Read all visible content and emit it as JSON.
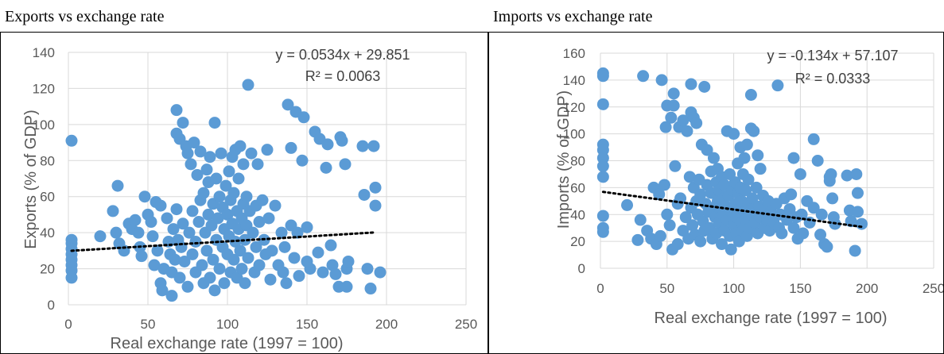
{
  "captions": {
    "left": "Exports vs exchange rate",
    "right": "Imports vs exchange rate"
  },
  "colors": {
    "point": "#5b9bd5",
    "grid": "#d9d9d9",
    "trend": "#000000",
    "text": "#595959"
  },
  "chart_data": [
    {
      "type": "scatter",
      "title": "",
      "xlabel": "Real exchange rate (1997 = 100)",
      "ylabel": "Exports (% of GDP)",
      "xlim": [
        0,
        250
      ],
      "ylim": [
        0,
        140
      ],
      "xticks": [
        0,
        50,
        100,
        150,
        200,
        250
      ],
      "yticks": [
        0,
        20,
        40,
        60,
        80,
        100,
        120,
        140
      ],
      "grid": true,
      "trendline": {
        "slope": 0.0534,
        "intercept": 29.851,
        "x_range": [
          2,
          193
        ],
        "style": "dotted"
      },
      "equation": "y = 0.0534x + 29.851",
      "r_squared": "R² = 0.0063",
      "points": [
        [
          2,
          91
        ],
        [
          2,
          36
        ],
        [
          2,
          34
        ],
        [
          2,
          31
        ],
        [
          2,
          28
        ],
        [
          2,
          25
        ],
        [
          2,
          22
        ],
        [
          2,
          19
        ],
        [
          2,
          15
        ],
        [
          20,
          38
        ],
        [
          28,
          52
        ],
        [
          30,
          40
        ],
        [
          31,
          66
        ],
        [
          32,
          34
        ],
        [
          35,
          30
        ],
        [
          38,
          45
        ],
        [
          40,
          42
        ],
        [
          42,
          47
        ],
        [
          44,
          40
        ],
        [
          45,
          32
        ],
        [
          46,
          27
        ],
        [
          48,
          60
        ],
        [
          50,
          50
        ],
        [
          52,
          46
        ],
        [
          53,
          38
        ],
        [
          54,
          22
        ],
        [
          55,
          57
        ],
        [
          56,
          30
        ],
        [
          58,
          55
        ],
        [
          58,
          12
        ],
        [
          59,
          8
        ],
        [
          60,
          20
        ],
        [
          62,
          48
        ],
        [
          63,
          35
        ],
        [
          64,
          28
        ],
        [
          65,
          5
        ],
        [
          65,
          18
        ],
        [
          66,
          42
        ],
        [
          67,
          25
        ],
        [
          68,
          95
        ],
        [
          68,
          108
        ],
        [
          68,
          53
        ],
        [
          69,
          36
        ],
        [
          70,
          15
        ],
        [
          70,
          92
        ],
        [
          71,
          32
        ],
        [
          72,
          101
        ],
        [
          72,
          45
        ],
        [
          73,
          24
        ],
        [
          74,
          88
        ],
        [
          75,
          84
        ],
        [
          75,
          10
        ],
        [
          76,
          40
        ],
        [
          77,
          78
        ],
        [
          78,
          28
        ],
        [
          78,
          52
        ],
        [
          79,
          90
        ],
        [
          80,
          18
        ],
        [
          80,
          35
        ],
        [
          81,
          72
        ],
        [
          82,
          46
        ],
        [
          83,
          58
        ],
        [
          83,
          85
        ],
        [
          84,
          22
        ],
        [
          85,
          12
        ],
        [
          85,
          62
        ],
        [
          86,
          40
        ],
        [
          87,
          30
        ],
        [
          87,
          75
        ],
        [
          88,
          50
        ],
        [
          88,
          68
        ],
        [
          89,
          15
        ],
        [
          89,
          82
        ],
        [
          90,
          44
        ],
        [
          91,
          25
        ],
        [
          91,
          56
        ],
        [
          92,
          101
        ],
        [
          92,
          8
        ],
        [
          93,
          36
        ],
        [
          93,
          70
        ],
        [
          94,
          48
        ],
        [
          95,
          20
        ],
        [
          95,
          60
        ],
        [
          96,
          84
        ],
        [
          97,
          32
        ],
        [
          97,
          54
        ],
        [
          98,
          12
        ],
        [
          98,
          42
        ],
        [
          99,
          66
        ],
        [
          100,
          28
        ],
        [
          100,
          50
        ],
        [
          101,
          38
        ],
        [
          101,
          74
        ],
        [
          102,
          18
        ],
        [
          102,
          58
        ],
        [
          103,
          45
        ],
        [
          103,
          82
        ],
        [
          104,
          25
        ],
        [
          104,
          62
        ],
        [
          105,
          35
        ],
        [
          105,
          86
        ],
        [
          106,
          52
        ],
        [
          106,
          15
        ],
        [
          107,
          42
        ],
        [
          107,
          70
        ],
        [
          108,
          30
        ],
        [
          108,
          88
        ],
        [
          109,
          48
        ],
        [
          109,
          20
        ],
        [
          110,
          56
        ],
        [
          110,
          78
        ],
        [
          111,
          36
        ],
        [
          111,
          12
        ],
        [
          112,
          60
        ],
        [
          112,
          44
        ],
        [
          113,
          122
        ],
        [
          113,
          26
        ],
        [
          114,
          52
        ],
        [
          115,
          84
        ],
        [
          116,
          40
        ],
        [
          117,
          18
        ],
        [
          118,
          55
        ],
        [
          118,
          32
        ],
        [
          119,
          78
        ],
        [
          120,
          46
        ],
        [
          120,
          22
        ],
        [
          122,
          58
        ],
        [
          123,
          36
        ],
        [
          124,
          28
        ],
        [
          125,
          86
        ],
        [
          126,
          48
        ],
        [
          127,
          14
        ],
        [
          128,
          30
        ],
        [
          130,
          55
        ],
        [
          132,
          22
        ],
        [
          134,
          40
        ],
        [
          135,
          18
        ],
        [
          136,
          32
        ],
        [
          137,
          12
        ],
        [
          138,
          111
        ],
        [
          140,
          44
        ],
        [
          140,
          87
        ],
        [
          142,
          26
        ],
        [
          143,
          107
        ],
        [
          144,
          40
        ],
        [
          145,
          16
        ],
        [
          147,
          80
        ],
        [
          148,
          104
        ],
        [
          150,
          43
        ],
        [
          150,
          24
        ],
        [
          152,
          20
        ],
        [
          155,
          96
        ],
        [
          157,
          29
        ],
        [
          158,
          92
        ],
        [
          160,
          18
        ],
        [
          162,
          76
        ],
        [
          163,
          89
        ],
        [
          165,
          33
        ],
        [
          166,
          22
        ],
        [
          168,
          17
        ],
        [
          170,
          10
        ],
        [
          171,
          93
        ],
        [
          172,
          91
        ],
        [
          174,
          78
        ],
        [
          175,
          20
        ],
        [
          175,
          10
        ],
        [
          176,
          24
        ],
        [
          185,
          88
        ],
        [
          186,
          61
        ],
        [
          188,
          20
        ],
        [
          190,
          9
        ],
        [
          192,
          88
        ],
        [
          193,
          65
        ],
        [
          193,
          55
        ],
        [
          196,
          18
        ]
      ]
    },
    {
      "type": "scatter",
      "title": "",
      "xlabel": "Real exchange rate (1997 = 100)",
      "ylabel": "Imports (% of GDP)",
      "xlim": [
        0,
        250
      ],
      "ylim": [
        0,
        160
      ],
      "xticks": [
        0,
        50,
        100,
        150,
        200,
        250
      ],
      "yticks": [
        0,
        20,
        40,
        60,
        80,
        100,
        120,
        140,
        160
      ],
      "grid": true,
      "trendline": {
        "slope": -0.134,
        "intercept": 57.107,
        "x_range": [
          2,
          196
        ],
        "style": "dotted"
      },
      "equation": "y = -0.134x + 57.107",
      "r_squared": "R² = 0.0333",
      "points": [
        [
          2,
          145
        ],
        [
          2,
          143
        ],
        [
          2,
          122
        ],
        [
          2,
          92
        ],
        [
          2,
          88
        ],
        [
          2,
          82
        ],
        [
          2,
          76
        ],
        [
          2,
          68
        ],
        [
          2,
          39
        ],
        [
          2,
          30
        ],
        [
          2,
          27
        ],
        [
          20,
          47
        ],
        [
          28,
          21
        ],
        [
          30,
          36
        ],
        [
          32,
          143
        ],
        [
          35,
          28
        ],
        [
          38,
          22
        ],
        [
          40,
          60
        ],
        [
          42,
          18
        ],
        [
          44,
          55
        ],
        [
          45,
          24
        ],
        [
          46,
          140
        ],
        [
          48,
          62
        ],
        [
          49,
          105
        ],
        [
          50,
          121
        ],
        [
          50,
          40
        ],
        [
          52,
          32
        ],
        [
          53,
          112
        ],
        [
          54,
          14
        ],
        [
          55,
          121
        ],
        [
          55,
          130
        ],
        [
          56,
          76
        ],
        [
          58,
          48
        ],
        [
          58,
          18
        ],
        [
          59,
          105
        ],
        [
          60,
          52
        ],
        [
          62,
          110
        ],
        [
          62,
          28
        ],
        [
          64,
          38
        ],
        [
          65,
          102
        ],
        [
          66,
          22
        ],
        [
          67,
          68
        ],
        [
          68,
          137
        ],
        [
          68,
          116
        ],
        [
          68,
          45
        ],
        [
          69,
          32
        ],
        [
          70,
          112
        ],
        [
          70,
          60
        ],
        [
          71,
          25
        ],
        [
          72,
          108
        ],
        [
          72,
          50
        ],
        [
          73,
          40
        ],
        [
          74,
          66
        ],
        [
          75,
          20
        ],
        [
          75,
          55
        ],
        [
          76,
          92
        ],
        [
          77,
          35
        ],
        [
          78,
          135
        ],
        [
          78,
          28
        ],
        [
          79,
          48
        ],
        [
          80,
          62
        ],
        [
          80,
          88
        ],
        [
          81,
          42
        ],
        [
          82,
          30
        ],
        [
          83,
          56
        ],
        [
          83,
          72
        ],
        [
          84,
          22
        ],
        [
          85,
          45
        ],
        [
          85,
          82
        ],
        [
          86,
          38
        ],
        [
          87,
          64
        ],
        [
          87,
          26
        ],
        [
          88,
          50
        ],
        [
          88,
          74
        ],
        [
          89,
          34
        ],
        [
          89,
          58
        ],
        [
          90,
          44
        ],
        [
          91,
          18
        ],
        [
          91,
          68
        ],
        [
          92,
          40
        ],
        [
          92,
          52
        ],
        [
          93,
          28
        ],
        [
          93,
          62
        ],
        [
          94,
          46
        ],
        [
          95,
          102
        ],
        [
          95,
          36
        ],
        [
          96,
          54
        ],
        [
          97,
          24
        ],
        [
          97,
          70
        ],
        [
          98,
          42
        ],
        [
          98,
          14
        ],
        [
          99,
          58
        ],
        [
          100,
          32
        ],
        [
          100,
          100
        ],
        [
          101,
          48
        ],
        [
          101,
          64
        ],
        [
          102,
          26
        ],
        [
          102,
          38
        ],
        [
          103,
          56
        ],
        [
          103,
          78
        ],
        [
          104,
          20
        ],
        [
          104,
          44
        ],
        [
          105,
          60
        ],
        [
          105,
          90
        ],
        [
          106,
          34
        ],
        [
          106,
          50
        ],
        [
          107,
          28
        ],
        [
          107,
          70
        ],
        [
          108,
          42
        ],
        [
          108,
          82
        ],
        [
          109,
          36
        ],
        [
          109,
          58
        ],
        [
          110,
          24
        ],
        [
          110,
          92
        ],
        [
          111,
          48
        ],
        [
          111,
          66
        ],
        [
          112,
          30
        ],
        [
          112,
          40
        ],
        [
          113,
          129
        ],
        [
          113,
          104
        ],
        [
          114,
          52
        ],
        [
          115,
          44
        ],
        [
          115,
          102
        ],
        [
          116,
          34
        ],
        [
          117,
          60
        ],
        [
          118,
          26
        ],
        [
          118,
          84
        ],
        [
          119,
          46
        ],
        [
          120,
          38
        ],
        [
          120,
          74
        ],
        [
          122,
          54
        ],
        [
          123,
          30
        ],
        [
          124,
          44
        ],
        [
          125,
          36
        ],
        [
          126,
          50
        ],
        [
          127,
          28
        ],
        [
          128,
          42
        ],
        [
          130,
          34
        ],
        [
          132,
          48
        ],
        [
          133,
          136
        ],
        [
          134,
          30
        ],
        [
          135,
          40
        ],
        [
          136,
          26
        ],
        [
          138,
          52
        ],
        [
          140,
          36
        ],
        [
          142,
          44
        ],
        [
          143,
          55
        ],
        [
          145,
          82
        ],
        [
          145,
          30
        ],
        [
          147,
          38
        ],
        [
          148,
          22
        ],
        [
          150,
          70
        ],
        [
          151,
          40
        ],
        [
          152,
          26
        ],
        [
          155,
          50
        ],
        [
          157,
          34
        ],
        [
          160,
          96
        ],
        [
          160,
          45
        ],
        [
          163,
          80
        ],
        [
          165,
          25
        ],
        [
          166,
          40
        ],
        [
          168,
          18
        ],
        [
          170,
          16
        ],
        [
          172,
          65
        ],
        [
          172,
          68
        ],
        [
          173,
          70
        ],
        [
          174,
          52
        ],
        [
          175,
          38
        ],
        [
          176,
          33
        ],
        [
          185,
          69
        ],
        [
          187,
          43
        ],
        [
          188,
          35
        ],
        [
          191,
          13
        ],
        [
          192,
          70
        ],
        [
          193,
          56
        ],
        [
          193,
          42
        ],
        [
          196,
          33
        ]
      ]
    }
  ]
}
